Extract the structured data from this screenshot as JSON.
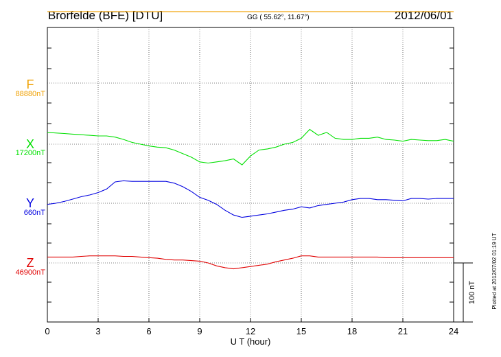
{
  "header": {
    "station": "Brorfelde (BFE)  [DTU]",
    "coords": "GG ( 55.62°,  11.67°)",
    "date": "2012/06/01"
  },
  "side_note": "Plotted at 2012/07/02 01:19 UT",
  "scale_label": "100 nT",
  "chart_data": {
    "type": "line",
    "xlabel": "U T (hour)",
    "xlim": [
      0,
      24
    ],
    "x_ticks": [
      "0",
      "3",
      "6",
      "9",
      "12",
      "15",
      "18",
      "21",
      "24"
    ],
    "scale_bar_nT": 100,
    "grid": true,
    "series": [
      {
        "name": "F",
        "baseline_label": "88880nT",
        "color": "#f0a000",
        "x": [
          0,
          24
        ],
        "values": [
          121,
          121
        ]
      },
      {
        "name": "X",
        "baseline_label": "17200nT",
        "color": "#00e000",
        "x": [
          0,
          0.5,
          1,
          1.5,
          2,
          2.5,
          3,
          3.5,
          4,
          4.5,
          5,
          5.5,
          6,
          6.5,
          7,
          7.5,
          8,
          8.5,
          9,
          9.5,
          10,
          10.5,
          11,
          11.5,
          12,
          12.5,
          13,
          13.5,
          14,
          14.5,
          15,
          15.5,
          16,
          16.5,
          17,
          17.5,
          18,
          18.5,
          19,
          19.5,
          20,
          20.5,
          21,
          21.5,
          22,
          22.5,
          23,
          23.5,
          24
        ],
        "values": [
          20,
          19,
          18,
          17,
          16,
          15,
          14,
          14,
          12,
          8,
          3,
          0,
          -3,
          -5,
          -6,
          -10,
          -16,
          -22,
          -30,
          -32,
          -30,
          -28,
          -25,
          -35,
          -20,
          -10,
          -8,
          -5,
          0,
          3,
          10,
          25,
          15,
          20,
          10,
          8,
          8,
          10,
          10,
          12,
          8,
          7,
          5,
          8,
          7,
          6,
          6,
          8,
          5
        ]
      },
      {
        "name": "Y",
        "baseline_label": "660nT",
        "color": "#0000e0",
        "x": [
          0,
          0.5,
          1,
          1.5,
          2,
          2.5,
          3,
          3.5,
          4,
          4.5,
          5,
          5.5,
          6,
          6.5,
          7,
          7.5,
          8,
          8.5,
          9,
          9.5,
          10,
          10.5,
          11,
          11.5,
          12,
          12.5,
          13,
          13.5,
          14,
          14.5,
          15,
          15.5,
          16,
          16.5,
          17,
          17.5,
          18,
          18.5,
          19,
          19.5,
          20,
          20.5,
          21,
          21.5,
          22,
          22.5,
          23,
          23.5,
          24
        ],
        "values": [
          -2,
          0,
          3,
          7,
          11,
          14,
          18,
          24,
          36,
          38,
          37,
          37,
          37,
          37,
          37,
          34,
          28,
          20,
          10,
          5,
          -2,
          -12,
          -20,
          -24,
          -22,
          -20,
          -18,
          -15,
          -12,
          -10,
          -6,
          -8,
          -4,
          -2,
          0,
          2,
          6,
          8,
          8,
          6,
          6,
          5,
          4,
          8,
          8,
          7,
          8,
          8,
          8
        ]
      },
      {
        "name": "Z",
        "baseline_label": "46900nT",
        "color": "#e00000",
        "x": [
          0,
          0.5,
          1,
          1.5,
          2,
          2.5,
          3,
          3.5,
          4,
          4.5,
          5,
          5.5,
          6,
          6.5,
          7,
          7.5,
          8,
          8.5,
          9,
          9.5,
          10,
          10.5,
          11,
          11.5,
          12,
          12.5,
          13,
          13.5,
          14,
          14.5,
          15,
          15.5,
          16,
          16.5,
          17,
          17.5,
          18,
          18.5,
          19,
          19.5,
          20,
          20.5,
          21,
          21.5,
          22,
          22.5,
          23,
          23.5,
          24
        ],
        "values": [
          10,
          10,
          10,
          10,
          11,
          12,
          12,
          12,
          12,
          11,
          11,
          10,
          9,
          8,
          6,
          5,
          5,
          4,
          3,
          0,
          -5,
          -8,
          -10,
          -8,
          -6,
          -4,
          -2,
          2,
          5,
          8,
          12,
          12,
          10,
          10,
          10,
          10,
          10,
          10,
          10,
          10,
          9,
          9,
          9,
          9,
          9,
          9,
          9,
          9,
          9
        ]
      }
    ]
  }
}
